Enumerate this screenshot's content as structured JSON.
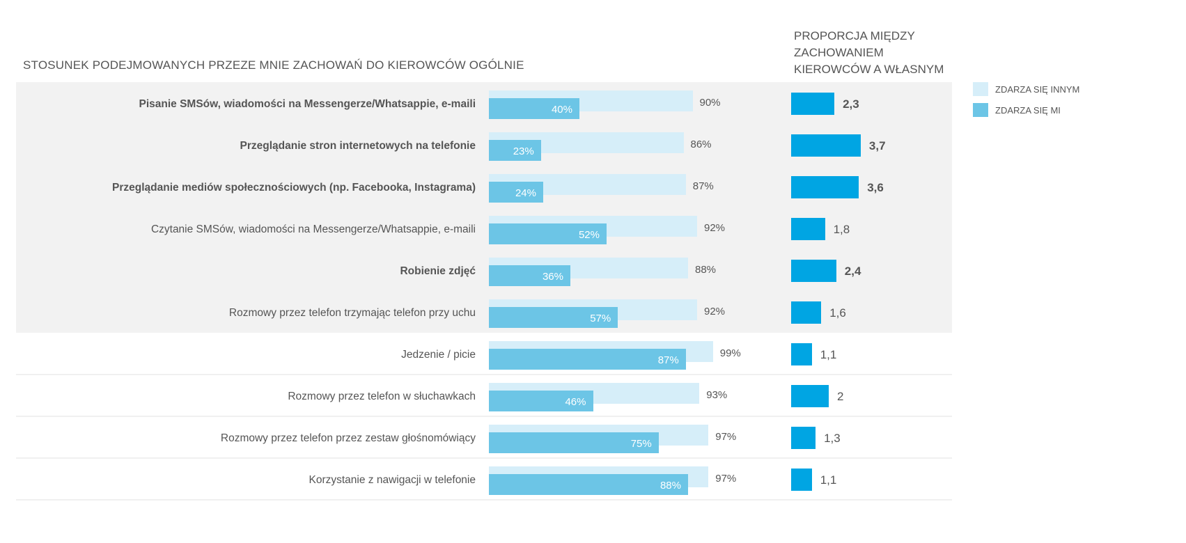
{
  "chart_data": {
    "type": "bar",
    "title": "STOSUNEK PODEJMOWANYCH PRZEZE MNIE ZACHOWAŃ DO KIEROWCÓW OGÓLNIE",
    "ratio_title": "PROPORCJA MIĘDZY ZACHOWANIEM KIEROWCÓW A WŁASNYM",
    "xlim": [
      0,
      100
    ],
    "colors": {
      "others": "#d6eef9",
      "me": "#6cc5e6",
      "ratio": "#00a5e3",
      "highlight_bg": "#f2f2f2"
    },
    "legend": [
      {
        "name": "ZDARZA SIĘ INNYM",
        "color": "#d6eef9"
      },
      {
        "name": "ZDARZA SIĘ MI",
        "color": "#6cc5e6"
      }
    ],
    "legend_position": "top-right",
    "categories": [
      {
        "label": "Pisanie  SMSów, wiadomości na Messengerze/Whatsappie, e-maili",
        "others": 90,
        "me": 40,
        "ratio": 2.3,
        "ratio_label": "2,3",
        "bold": true
      },
      {
        "label": "Przeglądanie stron internetowych na telefonie",
        "others": 86,
        "me": 23,
        "ratio": 3.7,
        "ratio_label": "3,7",
        "bold": true
      },
      {
        "label": "Przeglądanie mediów społecznościowych (np. Facebooka, Instagrama)",
        "others": 87,
        "me": 24,
        "ratio": 3.6,
        "ratio_label": "3,6",
        "bold": true
      },
      {
        "label": "Czytanie SMSów, wiadomości na Messengerze/Whatsappie, e-maili",
        "others": 92,
        "me": 52,
        "ratio": 1.8,
        "ratio_label": "1,8",
        "bold": false
      },
      {
        "label": "Robienie zdjęć",
        "others": 88,
        "me": 36,
        "ratio": 2.4,
        "ratio_label": "2,4",
        "bold": true
      },
      {
        "label": "Rozmowy przez telefon trzymając telefon przy uchu",
        "others": 92,
        "me": 57,
        "ratio": 1.6,
        "ratio_label": "1,6",
        "bold": false
      },
      {
        "label": "Jedzenie / picie",
        "others": 99,
        "me": 87,
        "ratio": 1.1,
        "ratio_label": "1,1",
        "bold": false
      },
      {
        "label": "Rozmowy przez telefon w słuchawkach",
        "others": 93,
        "me": 46,
        "ratio": 2,
        "ratio_label": "2",
        "bold": false
      },
      {
        "label": "Rozmowy przez telefon przez zestaw głośnomówiący",
        "others": 97,
        "me": 75,
        "ratio": 1.3,
        "ratio_label": "1,3",
        "bold": false
      },
      {
        "label": "Korzystanie z nawigacji w telefonie",
        "others": 97,
        "me": 88,
        "ratio": 1.1,
        "ratio_label": "1,1",
        "bold": false
      }
    ],
    "highlighted_rows": 6
  }
}
